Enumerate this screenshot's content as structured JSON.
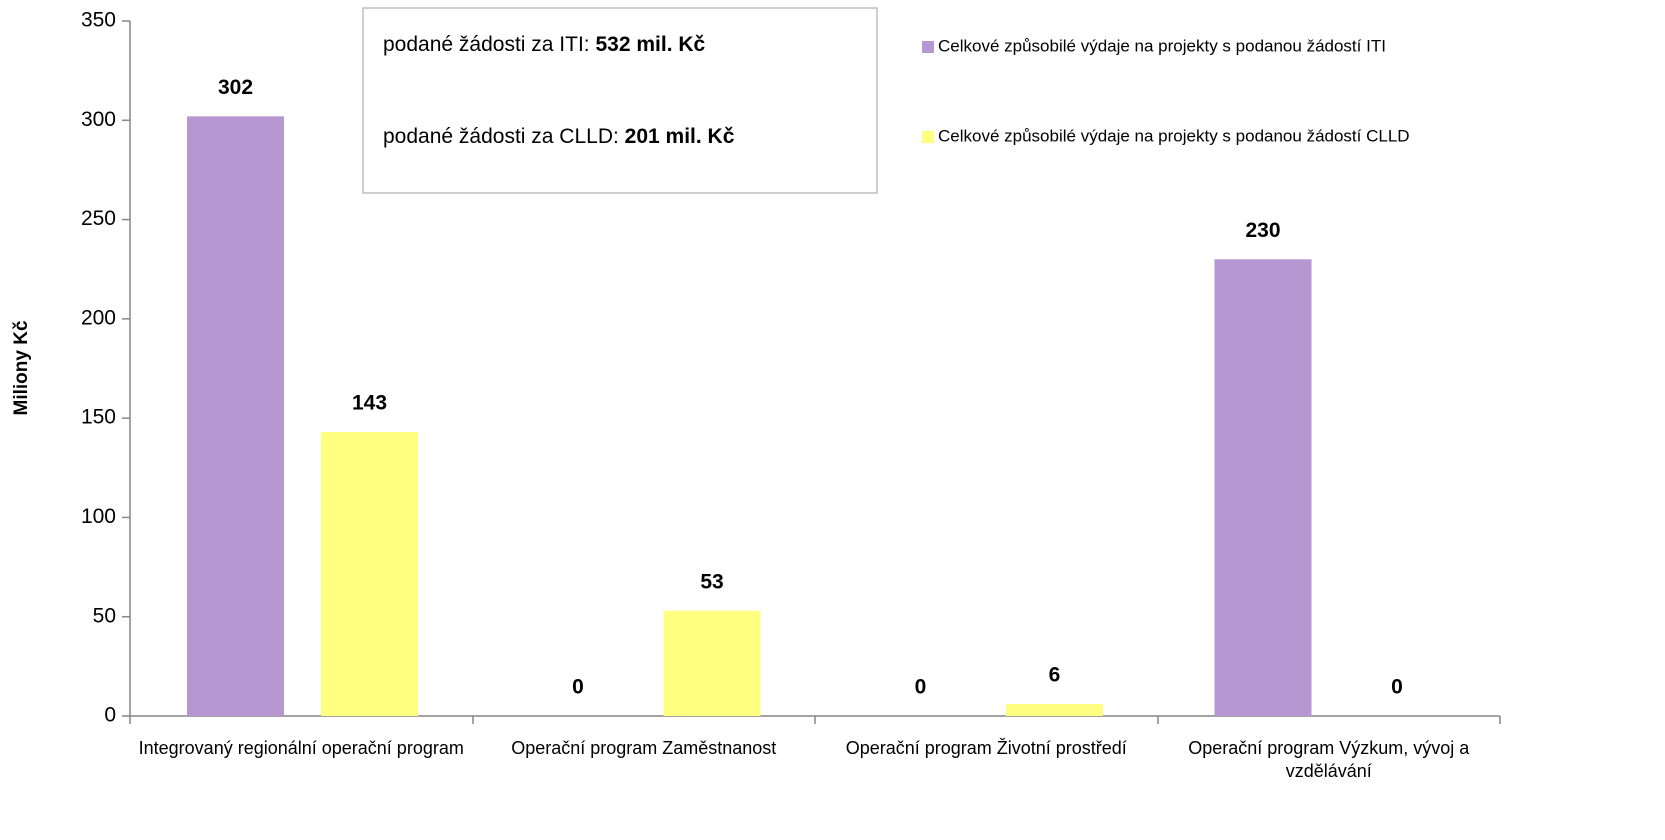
{
  "chart_data": {
    "type": "bar",
    "y_label": "Miliony Kč",
    "categories": [
      "Integrovaný regionální operační program",
      "Operační program Zaměstnanost",
      "Operační program Životní prostředí",
      "Operační program Výzkum, vývoj a vzdělávání"
    ],
    "series": [
      {
        "name": "Celkové způsobilé výdaje na projekty s podanou žádostí ITI",
        "color": "#b797d1",
        "values": [
          302,
          0,
          0,
          230
        ]
      },
      {
        "name": "Celkové způsobilé výdaje na projekty s podanou žádostí CLLD",
        "color": "#ffff80",
        "values": [
          143,
          53,
          6,
          0
        ]
      }
    ],
    "ylim": [
      0,
      350
    ],
    "yticks": [
      0,
      50,
      100,
      150,
      200,
      250,
      300,
      350
    ],
    "annotations": [
      {
        "text": "podané žádosti za ITI:",
        "bold": "532 mil.  Kč"
      },
      {
        "text": "podané žádosti za CLLD:",
        "bold": "201 mil.  Kč"
      }
    ],
    "legend": "top-right"
  }
}
